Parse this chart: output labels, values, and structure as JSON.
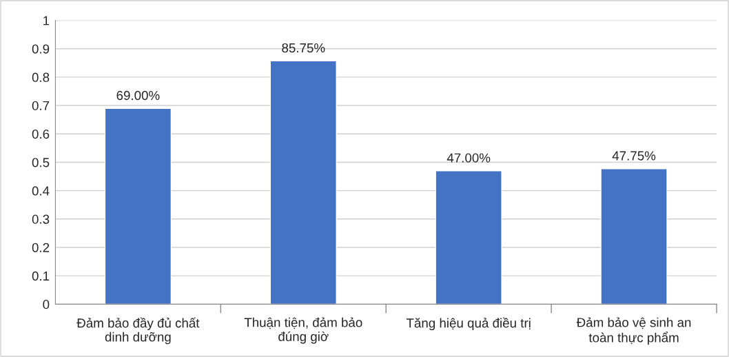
{
  "chart_data": {
    "type": "bar",
    "categories": [
      "Đảm bảo đầy đủ chất\ndinh dưỡng",
      "Thuận tiện, đảm bảo\nđúng giờ",
      "Tăng hiệu quả điều trị",
      "Đảm bảo vệ sinh an\ntoàn thực phẩm"
    ],
    "values": [
      0.69,
      0.8575,
      0.47,
      0.4775
    ],
    "value_labels": [
      "69.00%",
      "85.75%",
      "47.00%",
      "47.75%"
    ],
    "color": "#4472c4",
    "ylim": [
      0,
      1
    ],
    "yticks": [
      0,
      0.1,
      0.2,
      0.3,
      0.4,
      0.5,
      0.6,
      0.7,
      0.8,
      0.9,
      1
    ],
    "grid": "y",
    "legend": false
  }
}
